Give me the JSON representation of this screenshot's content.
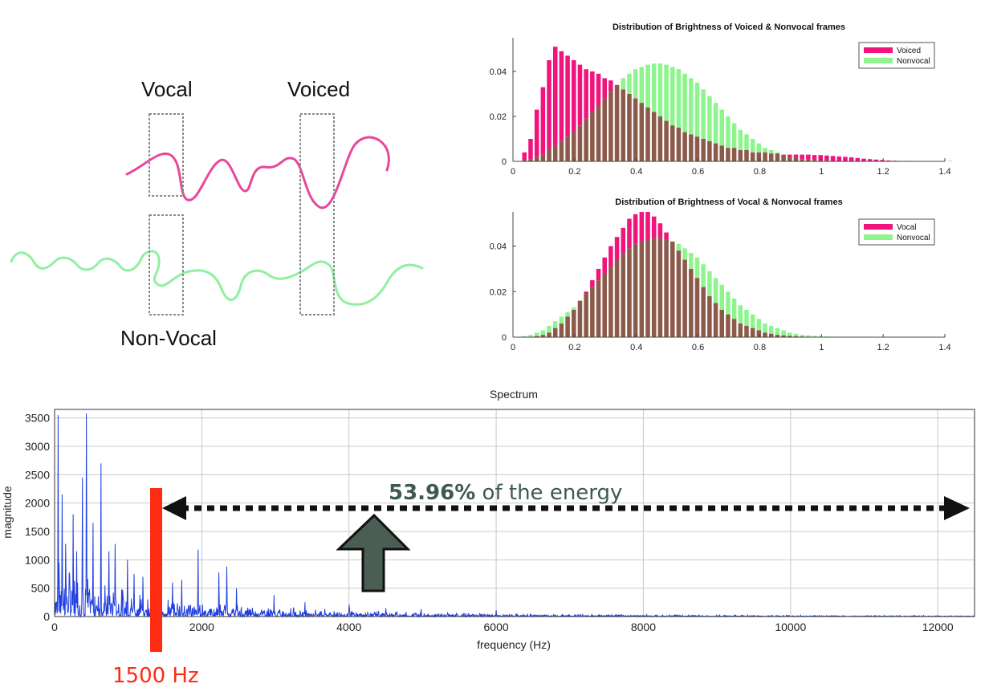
{
  "diagram": {
    "label_vocal": "Vocal",
    "label_voiced": "Voiced",
    "label_nonvocal": "Non-Vocal",
    "colors": {
      "voiced_wave": "#e8479b",
      "nonvocal_wave": "#8ff0a0",
      "box": "#8a8a8a"
    }
  },
  "chart_data": [
    {
      "type": "bar",
      "title": "Distribution of Brightness of Voiced & Nonvocal frames",
      "xlim": [
        0,
        1.4
      ],
      "ylim": [
        0,
        0.055
      ],
      "xticks": [
        "0",
        "0.2",
        "0.4",
        "0.6",
        "0.8",
        "1",
        "1.2",
        "1.4"
      ],
      "yticks": [
        "0",
        "0.02",
        "0.04"
      ],
      "legend_position": "top-right",
      "bin_start": 0.03,
      "bin_width": 0.02,
      "overlap_color": "#8b5a4a",
      "series": [
        {
          "name": "Voiced",
          "color": "#f0147c",
          "values": [
            0.004,
            0.01,
            0.023,
            0.033,
            0.045,
            0.051,
            0.049,
            0.047,
            0.045,
            0.043,
            0.041,
            0.04,
            0.039,
            0.037,
            0.036,
            0.034,
            0.032,
            0.03,
            0.028,
            0.026,
            0.024,
            0.022,
            0.02,
            0.018,
            0.016,
            0.015,
            0.013,
            0.012,
            0.011,
            0.01,
            0.009,
            0.008,
            0.007,
            0.006,
            0.006,
            0.005,
            0.005,
            0.004,
            0.004,
            0.004,
            0.0035,
            0.0035,
            0.003,
            0.003,
            0.003,
            0.003,
            0.003,
            0.0028,
            0.0028,
            0.0026,
            0.0024,
            0.0022,
            0.002,
            0.0018,
            0.0015,
            0.0012,
            0.001,
            0.0008,
            0.0006,
            0.0004,
            0.0003,
            0.0002,
            0.0002,
            0.0001,
            0.0001,
            0.0001,
            0.0001,
            0.0001,
            0.0001,
            0.0001
          ]
        },
        {
          "name": "Nonvocal",
          "color": "#8ef58e",
          "values": [
            0.0005,
            0.001,
            0.002,
            0.003,
            0.005,
            0.007,
            0.009,
            0.011,
            0.013,
            0.016,
            0.019,
            0.022,
            0.025,
            0.028,
            0.031,
            0.034,
            0.037,
            0.039,
            0.041,
            0.042,
            0.043,
            0.0435,
            0.0435,
            0.043,
            0.042,
            0.041,
            0.039,
            0.037,
            0.035,
            0.032,
            0.029,
            0.026,
            0.023,
            0.02,
            0.017,
            0.014,
            0.012,
            0.01,
            0.008,
            0.006,
            0.005,
            0.004,
            0.003,
            0.002,
            0.0015,
            0.001,
            0.0008,
            0.0006,
            0.0004,
            0.0003,
            0.0002,
            0.0001,
            0,
            0,
            0,
            0,
            0,
            0,
            0,
            0,
            0,
            0,
            0,
            0,
            0,
            0,
            0,
            0,
            0,
            0
          ]
        }
      ]
    },
    {
      "type": "bar",
      "title": "Distribution of Brightness of Vocal & Nonvocal frames",
      "xlim": [
        0,
        1.4
      ],
      "ylim": [
        0,
        0.055
      ],
      "xticks": [
        "0",
        "0.2",
        "0.4",
        "0.6",
        "0.8",
        "1",
        "1.2",
        "1.4"
      ],
      "yticks": [
        "0",
        "0.02",
        "0.04"
      ],
      "legend_position": "top-right",
      "bin_start": 0.03,
      "bin_width": 0.02,
      "overlap_color": "#8b5a4a",
      "series": [
        {
          "name": "Vocal",
          "color": "#f0147c",
          "values": [
            0,
            0,
            0.0005,
            0.001,
            0.002,
            0.004,
            0.006,
            0.009,
            0.012,
            0.016,
            0.02,
            0.025,
            0.03,
            0.035,
            0.04,
            0.044,
            0.048,
            0.052,
            0.054,
            0.055,
            0.055,
            0.053,
            0.05,
            0.046,
            0.042,
            0.038,
            0.034,
            0.03,
            0.026,
            0.022,
            0.018,
            0.015,
            0.012,
            0.01,
            0.008,
            0.006,
            0.005,
            0.004,
            0.003,
            0.002,
            0.0015,
            0.001,
            0.0008,
            0.0006,
            0.0004,
            0.0003,
            0.0002,
            0.0001,
            0.0001,
            0,
            0,
            0,
            0,
            0,
            0,
            0,
            0,
            0,
            0,
            0,
            0,
            0,
            0,
            0,
            0,
            0,
            0,
            0,
            0,
            0
          ]
        },
        {
          "name": "Nonvocal",
          "color": "#8ef58e",
          "values": [
            0.0005,
            0.001,
            0.002,
            0.003,
            0.005,
            0.007,
            0.009,
            0.011,
            0.013,
            0.016,
            0.019,
            0.022,
            0.025,
            0.028,
            0.031,
            0.034,
            0.037,
            0.039,
            0.041,
            0.042,
            0.043,
            0.0435,
            0.0435,
            0.043,
            0.042,
            0.041,
            0.039,
            0.037,
            0.035,
            0.032,
            0.029,
            0.026,
            0.023,
            0.02,
            0.017,
            0.014,
            0.012,
            0.01,
            0.008,
            0.006,
            0.005,
            0.004,
            0.003,
            0.002,
            0.0015,
            0.001,
            0.0008,
            0.0006,
            0.0004,
            0.0003,
            0.0002,
            0.0001,
            0,
            0,
            0,
            0,
            0,
            0,
            0,
            0,
            0,
            0,
            0,
            0,
            0,
            0,
            0,
            0,
            0,
            0
          ]
        }
      ]
    },
    {
      "type": "line",
      "title": "Spectrum",
      "xlabel": "frequency (Hz)",
      "ylabel": "magnitude",
      "xlim": [
        0,
        12500
      ],
      "ylim": [
        0,
        3650
      ],
      "xticks": [
        "0",
        "2000",
        "4000",
        "6000",
        "8000",
        "10000",
        "12000"
      ],
      "yticks": [
        "0",
        "500",
        "1000",
        "1500",
        "2000",
        "2500",
        "3000",
        "3500"
      ],
      "grid": true,
      "line_color": "#1f3fe0",
      "peaks": [
        {
          "x": 50,
          "y": 3550
        },
        {
          "x": 100,
          "y": 2150
        },
        {
          "x": 150,
          "y": 1280
        },
        {
          "x": 250,
          "y": 1800
        },
        {
          "x": 300,
          "y": 1150
        },
        {
          "x": 380,
          "y": 2450
        },
        {
          "x": 430,
          "y": 3580
        },
        {
          "x": 520,
          "y": 1650
        },
        {
          "x": 630,
          "y": 2700
        },
        {
          "x": 740,
          "y": 1150
        },
        {
          "x": 820,
          "y": 1280
        },
        {
          "x": 990,
          "y": 1000
        },
        {
          "x": 1080,
          "y": 750
        },
        {
          "x": 1200,
          "y": 700
        },
        {
          "x": 1380,
          "y": 550
        },
        {
          "x": 1600,
          "y": 600
        },
        {
          "x": 1730,
          "y": 650
        },
        {
          "x": 1950,
          "y": 1180
        },
        {
          "x": 2230,
          "y": 780
        },
        {
          "x": 2340,
          "y": 880
        },
        {
          "x": 2470,
          "y": 500
        },
        {
          "x": 2980,
          "y": 380
        },
        {
          "x": 3400,
          "y": 250
        },
        {
          "x": 4000,
          "y": 210
        },
        {
          "x": 4500,
          "y": 150
        },
        {
          "x": 4980,
          "y": 130
        },
        {
          "x": 6000,
          "y": 110
        }
      ],
      "annotations": {
        "cutoff_hz": 1500,
        "cutoff_label": "1500 Hz",
        "energy_percent": "53.96%",
        "energy_text": " of the energy",
        "colors": {
          "cutoff": "#ff2a12",
          "arrow": "#4a5e53",
          "dashes": "#111111"
        }
      }
    }
  ]
}
